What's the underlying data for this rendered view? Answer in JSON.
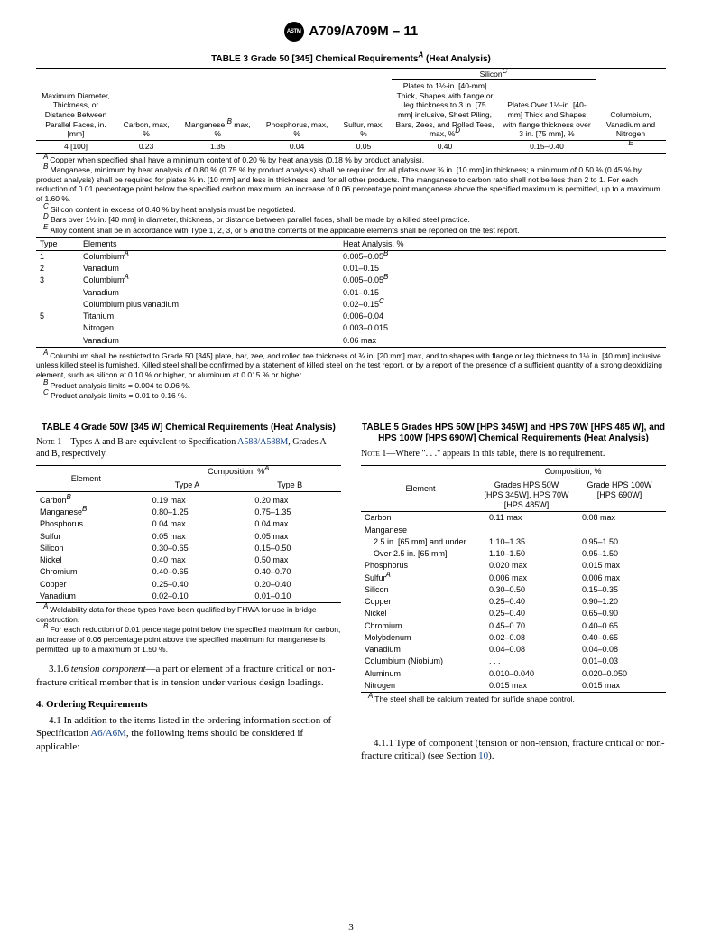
{
  "header": {
    "astm_mark": "ASTM",
    "spec": "A709/A709M – 11"
  },
  "table3": {
    "title": "TABLE 3 Grade 50 [345] Chemical Requirements",
    "title_sup": "A",
    "title_tail": " (Heat Analysis)",
    "group_silicon": "Silicon",
    "group_silicon_sup": "C",
    "group_cvn": "Columbium, Vanadium and Nitrogen",
    "c1": "Maximum Diameter, Thickness, or Distance Between Parallel Faces, in. [mm]",
    "c2": "Carbon, max, %",
    "c3": "Manganese,",
    "c3_sup": "B",
    "c3_tail": " max, %",
    "c4": "Phosphorus, max, %",
    "c5": "Sulfur, max, %",
    "c6": "Plates to 1½-in. [40-mm] Thick, Shapes with flange or leg thickness to 3 in. [75 mm] inclusive, Sheet Piling, Bars, Zees, and Rolled Tees, max, %",
    "c6_sup": "D",
    "c7": "Plates Over 1½-in. [40-mm] Thick and Shapes with flange thickness over 3 in. [75 mm], %",
    "row": {
      "r1": "4 [100]",
      "r2": "0.23",
      "r3": "1.35",
      "r4": "0.04",
      "r5": "0.05",
      "r6": "0.40",
      "r7": "0.15–0.40"
    },
    "row_end_sup": "E",
    "fnA": "Copper when specified shall have a minimum content of 0.20 % by heat analysis (0.18 % by product analysis).",
    "fnB": "Manganese, minimum by heat analysis of 0.80 % (0.75 % by product analysis) shall be required for all plates over ⅜ in. [10 mm] in thickness; a minimum of 0.50 % (0.45 % by product analysis) shall be required for plates ⅜ in. [10 mm] and less in thickness, and for all other products. The manganese to carbon ratio shall not be less than 2 to 1. For each reduction of 0.01 percentage point below the specified carbon maximum, an increase of 0.06 percentage point manganese above the specified maximum is permitted, up to a maximum of 1.60 %.",
    "fnC": "Silicon content in excess of 0.40 % by heat analysis must be negotiated.",
    "fnD": "Bars over 1½ in. [40 mm] in diameter, thickness, or distance between parallel faces, shall be made by a killed steel practice.",
    "fnE": "Alloy content shall be in accordance with Type 1, 2, 3, or 5 and the contents of the applicable elements shall be reported on the test report.",
    "th_type": "Type",
    "th_elements": "Elements",
    "th_heat": "Heat Analysis, %",
    "types": [
      {
        "t": "1",
        "e": "Columbium",
        "e_sup": "A",
        "h": "0.005–0.05",
        "h_sup": "B"
      },
      {
        "t": "2",
        "e": "Vanadium",
        "e_sup": "",
        "h": "0.01–0.15",
        "h_sup": ""
      },
      {
        "t": "3",
        "e": "Columbium",
        "e_sup": "A",
        "h": "0.005–0.05",
        "h_sup": "B"
      },
      {
        "t": "",
        "e": "Vanadium",
        "e_sup": "",
        "h": "0.01–0.15",
        "h_sup": ""
      },
      {
        "t": "",
        "e": "Columbium plus vanadium",
        "e_sup": "",
        "h": "0.02–0.15",
        "h_sup": "C"
      },
      {
        "t": "5",
        "e": "Titanium",
        "e_sup": "",
        "h": "0.006–0.04",
        "h_sup": ""
      },
      {
        "t": "",
        "e": "Nitrogen",
        "e_sup": "",
        "h": "0.003–0.015",
        "h_sup": ""
      },
      {
        "t": "",
        "e": "Vanadium",
        "e_sup": "",
        "h": "0.06 max",
        "h_sup": ""
      }
    ],
    "fn2A": "Columbium shall be restricted to Grade 50 [345] plate, bar, zee, and rolled tee thickness of ¾ in. [20 mm] max, and to shapes with flange or leg thickness to 1½ in. [40 mm] inclusive unless killed steel is furnished. Killed steel shall be confirmed by a statement of killed steel on the test report, or by a report of the presence of a sufficient quantity of a strong deoxidizing element, such as silicon at 0.10 % or higher, or aluminum at 0.015 % or higher.",
    "fn2B": "Product analysis limits = 0.004 to 0.06 %.",
    "fn2C": "Product analysis limits = 0.01 to 0.16 %."
  },
  "table4": {
    "title": "TABLE 4 Grade 50W [345 W] Chemical Requirements (Heat Analysis)",
    "note_lead": "Note 1—",
    "note": "Types A and B are equivalent to Specification ",
    "note_link": "A588/A588M",
    "note_tail": ", Grades A and B, respectively.",
    "h_elem": "Element",
    "h_comp": "Composition, %",
    "h_comp_sup": "A",
    "h_a": "Type A",
    "h_b": "Type B",
    "rows": [
      {
        "e": "Carbon",
        "e_sup": "B",
        "a": "0.19 max",
        "b": "0.20 max"
      },
      {
        "e": "Manganese",
        "e_sup": "B",
        "a": "0.80–1.25",
        "b": "0.75–1.35"
      },
      {
        "e": "Phosphorus",
        "e_sup": "",
        "a": "0.04 max",
        "b": "0.04 max"
      },
      {
        "e": "Sulfur",
        "e_sup": "",
        "a": "0.05 max",
        "b": "0.05 max"
      },
      {
        "e": "Silicon",
        "e_sup": "",
        "a": "0.30–0.65",
        "b": "0.15–0.50"
      },
      {
        "e": "Nickel",
        "e_sup": "",
        "a": "0.40 max",
        "b": "0.50 max"
      },
      {
        "e": "Chromium",
        "e_sup": "",
        "a": "0.40–0.65",
        "b": "0.40–0.70"
      },
      {
        "e": "Copper",
        "e_sup": "",
        "a": "0.25–0.40",
        "b": "0.20–0.40"
      },
      {
        "e": "Vanadium",
        "e_sup": "",
        "a": "0.02–0.10",
        "b": "0.01–0.10"
      }
    ],
    "fnA": "Weldability data for these types have been qualified by FHWA for use in bridge construction.",
    "fnB": "For each reduction of 0.01 percentage point below the specified maximum for carbon, an increase of 0.06 percentage point above the specified maximum for manganese is permitted, up to a maximum of 1.50 %."
  },
  "table5": {
    "title": "TABLE 5 Grades HPS 50W [HPS 345W] and HPS 70W [HPS 485 W], and HPS 100W [HPS 690W] Chemical Requirements (Heat Analysis)",
    "note_lead": "Note 1—",
    "note": "Where \". . .\" appears in this table, there is no requirement.",
    "h_elem": "Element",
    "h_comp": "Composition, %",
    "h_g1": "Grades HPS 50W [HPS 345W], HPS 70W [HPS 485W]",
    "h_g2": "Grade HPS 100W [HPS 690W]",
    "rows": [
      {
        "e": "Carbon",
        "a": "0.11 max",
        "b": "0.08 max"
      },
      {
        "e": "Manganese",
        "a": "",
        "b": ""
      },
      {
        "e": "  2.5 in. [65 mm] and under",
        "a": "1.10–1.35",
        "b": "0.95–1.50",
        "indent": true
      },
      {
        "e": "  Over 2.5 in. [65 mm]",
        "a": "1.10–1.50",
        "b": "0.95–1.50",
        "indent": true
      },
      {
        "e": "Phosphorus",
        "a": "0.020 max",
        "b": "0.015 max"
      },
      {
        "e": "Sulfur",
        "e_sup": "A",
        "a": "0.006 max",
        "b": "0.006 max"
      },
      {
        "e": "Silicon",
        "a": "0.30–0.50",
        "b": "0.15–0.35"
      },
      {
        "e": "Copper",
        "a": "0.25–0.40",
        "b": "0.90–1.20"
      },
      {
        "e": "Nickel",
        "a": "0.25–0.40",
        "b": "0.65–0.90"
      },
      {
        "e": "Chromium",
        "a": "0.45–0.70",
        "b": "0.40–0.65"
      },
      {
        "e": "Molybdenum",
        "a": "0.02–0.08",
        "b": "0.40–0.65"
      },
      {
        "e": "Vanadium",
        "a": "0.04–0.08",
        "b": "0.04–0.08"
      },
      {
        "e": "Columbium (Niobium)",
        "a": ". . .",
        "b": "0.01–0.03"
      },
      {
        "e": "Aluminum",
        "a": "0.010–0.040",
        "b": "0.020–0.050"
      },
      {
        "e": "Nitrogen",
        "a": "0.015 max",
        "b": "0.015 max"
      }
    ],
    "fnA": "The steel shall be calcium treated for sulfide shape control."
  },
  "body": {
    "p316_lead": "3.1.6 ",
    "p316_term": "tension component",
    "p316_rest": "—a part or element of a fracture critical or non-fracture critical member that is in tension under various design loadings.",
    "h4": "4. Ordering Requirements",
    "p41_lead": "4.1 In addition to the items listed in the ordering information section of Specification ",
    "p41_link": "A6/A6M",
    "p41_rest": ", the following items should be considered if applicable:",
    "p411": "4.1.1 Type of component (tension or non-tension, fracture critical or non-fracture critical) (see Section ",
    "p411_link": "10",
    "p411_tail": ")."
  },
  "page_number": "3"
}
